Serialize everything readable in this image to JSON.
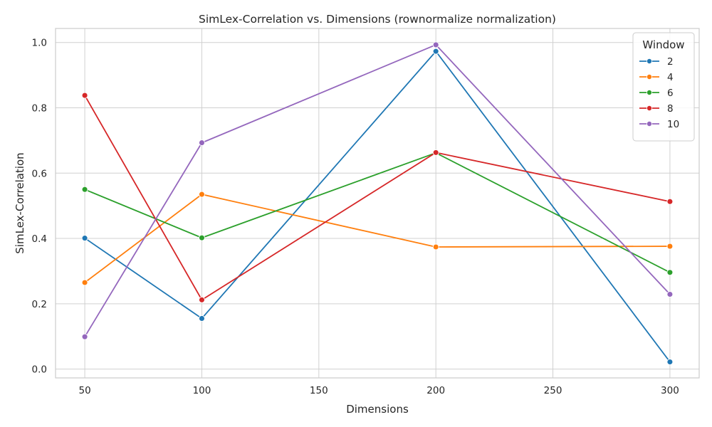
{
  "chart_data": {
    "type": "line",
    "title": "SimLex-Correlation vs. Dimensions (rownormalize normalization)",
    "xlabel": "Dimensions",
    "ylabel": "SimLex-Correlation",
    "x": [
      50,
      100,
      200,
      300
    ],
    "xticks": [
      50,
      100,
      150,
      200,
      250,
      300
    ],
    "yticks": [
      0.0,
      0.2,
      0.4,
      0.6,
      0.8,
      1.0
    ],
    "xtick_labels": [
      "50",
      "100",
      "150",
      "200",
      "250",
      "300"
    ],
    "ytick_labels": [
      "0.0",
      "0.2",
      "0.4",
      "0.6",
      "0.8",
      "1.0"
    ],
    "xlim": [
      37.5,
      312.5
    ],
    "ylim": [
      -0.027,
      1.043
    ],
    "grid": true,
    "legend": {
      "title": "Window",
      "position": "top-right"
    },
    "series": [
      {
        "name": "2",
        "color": "#1f77b4",
        "values": [
          0.401,
          0.155,
          0.973,
          0.022
        ]
      },
      {
        "name": "4",
        "color": "#ff7f0e",
        "values": [
          0.265,
          0.535,
          0.374,
          0.376
        ]
      },
      {
        "name": "6",
        "color": "#2ca02c",
        "values": [
          0.55,
          0.402,
          0.662,
          0.296
        ]
      },
      {
        "name": "8",
        "color": "#d62728",
        "values": [
          0.838,
          0.212,
          0.663,
          0.513
        ]
      },
      {
        "name": "10",
        "color": "#9467bd",
        "values": [
          0.099,
          0.693,
          0.993,
          0.229
        ]
      }
    ]
  }
}
